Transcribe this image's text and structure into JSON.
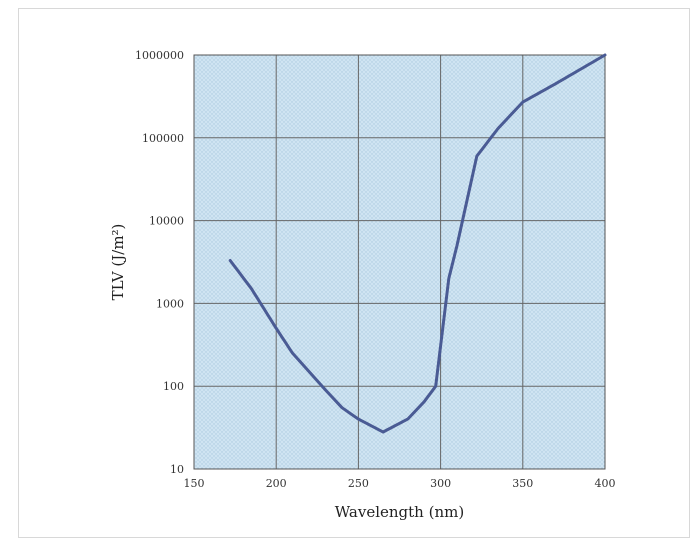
{
  "chart_data": {
    "type": "line",
    "title": "",
    "xlabel": "Wavelength (nm)",
    "ylabel": "TLV (J/m²)",
    "x_scale": "linear",
    "y_scale": "log",
    "xlim": [
      150,
      400
    ],
    "ylim": [
      10,
      1000000
    ],
    "grid": true,
    "legend": "none",
    "x_ticks": [
      150,
      200,
      250,
      300,
      350,
      400
    ],
    "x_tick_labels": [
      "150",
      "200",
      "250",
      "300",
      "350",
      "400"
    ],
    "y_ticks": [
      10,
      100,
      1000,
      10000,
      100000,
      1000000
    ],
    "y_tick_labels": [
      "10",
      "100",
      "1000",
      "10000",
      "100000",
      "1000000"
    ],
    "colors": {
      "plot_background": "#c9e2f1",
      "line": "#4a5b94",
      "grid": "#666666"
    },
    "series": [
      {
        "x": [
          172,
          185,
          200,
          210,
          220,
          230,
          240,
          250,
          265,
          280,
          290,
          297,
          305,
          310,
          322,
          335,
          350,
          370,
          400
        ],
        "y": [
          3300,
          1500,
          500,
          250,
          150,
          90,
          55,
          40,
          28,
          40,
          65,
          100,
          2000,
          5000,
          60000,
          130000,
          270000,
          450000,
          1000000
        ]
      }
    ]
  }
}
